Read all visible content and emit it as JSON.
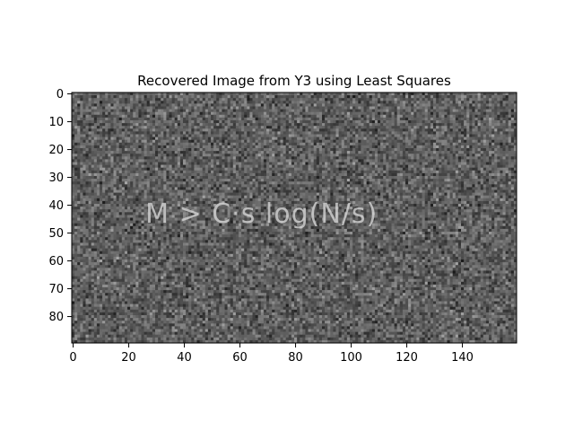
{
  "chart_data": {
    "type": "heatmap",
    "title": "Recovered Image from Y3 using Least Squares",
    "image_width": 160,
    "image_height": 90,
    "colormap": "gray",
    "x_ticks": [
      0,
      20,
      40,
      60,
      80,
      100,
      120,
      140
    ],
    "y_ticks": [
      0,
      10,
      20,
      30,
      40,
      50,
      60,
      70,
      80
    ],
    "xlim": [
      -0.5,
      159.5
    ],
    "ylim": [
      89.5,
      -0.5
    ],
    "grid": false,
    "embedded_text": "M > C·s log(N/s)",
    "embedded_text_position": {
      "x": 26,
      "y": 43
    }
  }
}
